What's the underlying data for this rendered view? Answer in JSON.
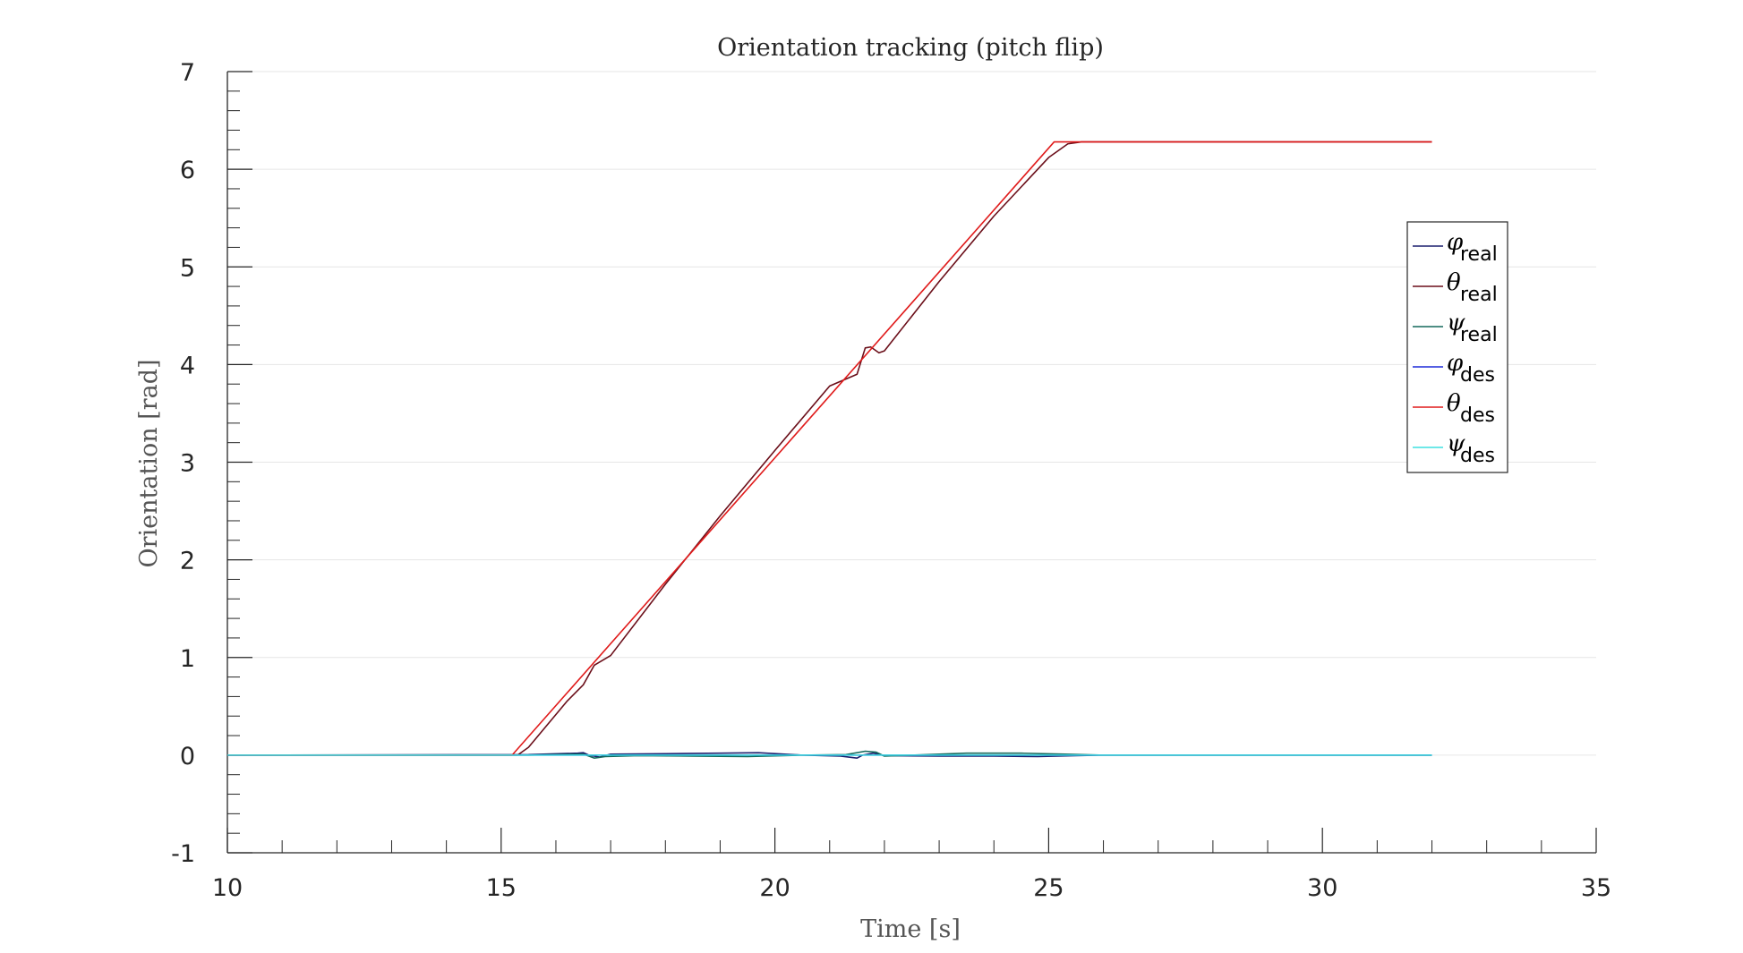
{
  "chart_data": {
    "type": "line",
    "title": "Orientation tracking (pitch flip)",
    "xlabel": "Time [s]",
    "ylabel": "Orientation [rad]",
    "xlim": [
      10,
      35
    ],
    "ylim": [
      -1,
      7
    ],
    "xticks": [
      10,
      15,
      20,
      25,
      30,
      35
    ],
    "yticks": [
      -1,
      0,
      1,
      2,
      3,
      4,
      5,
      6,
      7
    ],
    "xtick_labels": [
      "10",
      "15",
      "20",
      "25",
      "30",
      "35"
    ],
    "ytick_labels": [
      "-1",
      "0",
      "1",
      "2",
      "3",
      "4",
      "5",
      "6",
      "7"
    ],
    "grid": "horizontal",
    "legend_position": "right",
    "series": [
      {
        "name": "φ_real",
        "symbol": "φ",
        "subscript": "real",
        "color": "#1b1f6e",
        "points": [
          [
            10,
            0
          ],
          [
            15.5,
            0.005
          ],
          [
            16.4,
            0.02
          ],
          [
            16.5,
            0.025
          ],
          [
            16.6,
            0.0
          ],
          [
            16.8,
            -0.02
          ],
          [
            17.0,
            0.01
          ],
          [
            18,
            0.015
          ],
          [
            19,
            0.02
          ],
          [
            19.7,
            0.025
          ],
          [
            20.5,
            0.0
          ],
          [
            21.2,
            -0.01
          ],
          [
            21.5,
            -0.03
          ],
          [
            21.6,
            0.0
          ],
          [
            21.8,
            0.02
          ],
          [
            22.0,
            -0.005
          ],
          [
            23,
            -0.01
          ],
          [
            24,
            -0.01
          ],
          [
            24.8,
            -0.015
          ],
          [
            25.5,
            -0.005
          ],
          [
            26,
            0
          ],
          [
            32,
            0
          ]
        ]
      },
      {
        "name": "θ_real",
        "symbol": "θ",
        "subscript": "real",
        "color": "#6b0f1a",
        "points": [
          [
            10,
            0
          ],
          [
            15,
            0
          ],
          [
            15.3,
            0
          ],
          [
            15.5,
            0.08
          ],
          [
            16.2,
            0.55
          ],
          [
            16.5,
            0.72
          ],
          [
            16.7,
            0.92
          ],
          [
            17.0,
            1.02
          ],
          [
            18,
            1.75
          ],
          [
            19,
            2.45
          ],
          [
            20,
            3.12
          ],
          [
            21,
            3.78
          ],
          [
            21.5,
            3.9
          ],
          [
            21.65,
            4.17
          ],
          [
            21.75,
            4.18
          ],
          [
            21.9,
            4.12
          ],
          [
            22.0,
            4.14
          ],
          [
            23,
            4.85
          ],
          [
            24,
            5.52
          ],
          [
            25,
            6.12
          ],
          [
            25.35,
            6.26
          ],
          [
            25.6,
            6.28
          ],
          [
            32,
            6.28
          ]
        ]
      },
      {
        "name": "ψ_real",
        "symbol": "ψ",
        "subscript": "real",
        "color": "#13695c",
        "points": [
          [
            10,
            0
          ],
          [
            15.5,
            0
          ],
          [
            16.5,
            0.01
          ],
          [
            16.7,
            -0.03
          ],
          [
            16.9,
            -0.015
          ],
          [
            17.5,
            -0.005
          ],
          [
            18.5,
            -0.01
          ],
          [
            19.5,
            -0.015
          ],
          [
            20.5,
            0.0
          ],
          [
            21.3,
            0.005
          ],
          [
            21.65,
            0.04
          ],
          [
            21.85,
            0.03
          ],
          [
            22.0,
            -0.01
          ],
          [
            22.5,
            0.0
          ],
          [
            23.5,
            0.02
          ],
          [
            24.5,
            0.02
          ],
          [
            25.3,
            0.01
          ],
          [
            26,
            0
          ],
          [
            32,
            0
          ]
        ]
      },
      {
        "name": "φ_des",
        "symbol": "φ",
        "subscript": "des",
        "color": "#1f2bd8",
        "points": [
          [
            10,
            0
          ],
          [
            32,
            0
          ]
        ]
      },
      {
        "name": "θ_des",
        "symbol": "θ",
        "subscript": "des",
        "color": "#e01b1b",
        "points": [
          [
            10,
            0
          ],
          [
            15.2,
            0
          ],
          [
            25.1,
            6.28
          ],
          [
            32,
            6.28
          ]
        ]
      },
      {
        "name": "ψ_des",
        "symbol": "ψ",
        "subscript": "des",
        "color": "#3fe0e0",
        "points": [
          [
            10,
            0
          ],
          [
            32,
            0
          ]
        ]
      }
    ]
  }
}
